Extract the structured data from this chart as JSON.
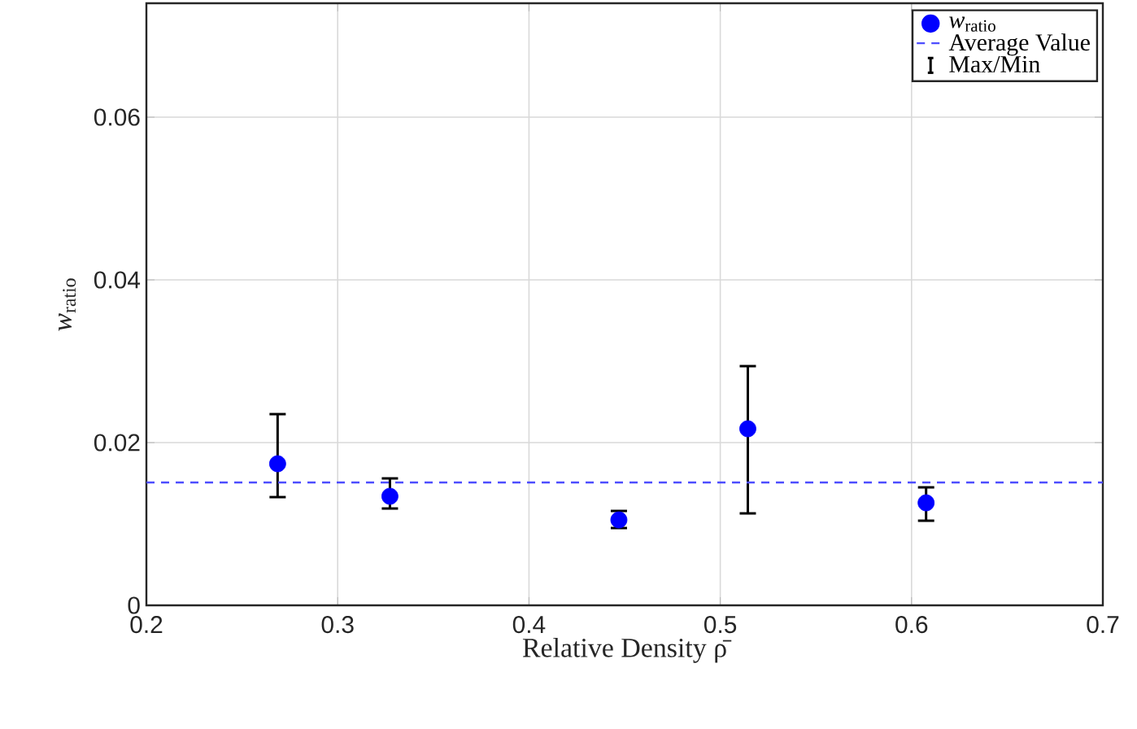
{
  "chart_data": {
    "type": "scatter",
    "xlabel": "Relative Density ρ̄",
    "ylabel": "*w*$_{ratio}$",
    "x": [
      0.2686,
      0.3273,
      0.447,
      0.5144,
      0.6076
    ],
    "series": [
      {
        "name": "*w*$_{ratio}$",
        "color": "#0000ff",
        "values": [
          0.0174,
          0.0134,
          0.0105,
          0.0217,
          0.0126
        ],
        "errors": [
          [
            0.0133,
            0.0235
          ],
          [
            0.0119,
            0.0156
          ],
          [
            0.0095,
            0.0116
          ],
          [
            0.0113,
            0.0294
          ],
          [
            0.0104,
            0.0145
          ]
        ]
      }
    ],
    "ref_lines": [
      {
        "axis": "y",
        "value": 0.0151,
        "label": "Average Value",
        "color": "#4d4dff",
        "line_style": "dashed"
      }
    ],
    "annotations": [
      "Max/Min"
    ],
    "xlim": [
      0.2,
      0.7
    ],
    "ylim": [
      0,
      0.074
    ],
    "xticks": [
      0.2,
      0.3,
      0.4,
      0.5,
      0.6,
      0.7
    ],
    "yticks": [
      0,
      0.02,
      0.04,
      0.06
    ],
    "grid": true,
    "legend": "top right"
  }
}
